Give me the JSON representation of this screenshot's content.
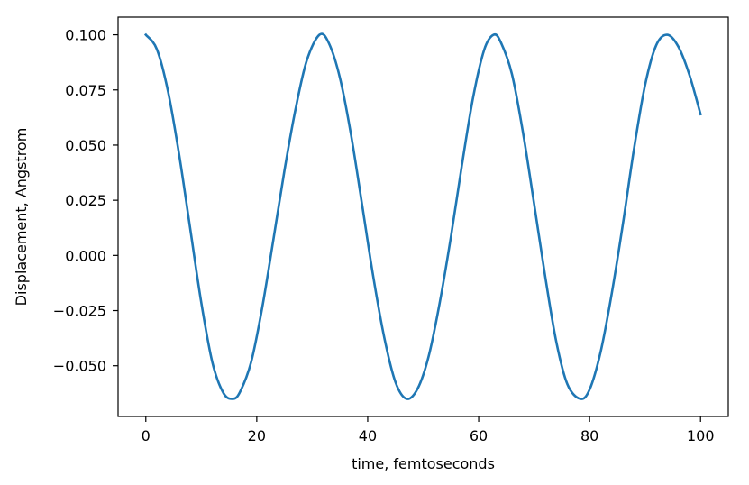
{
  "chart_data": {
    "type": "line",
    "title": "",
    "xlabel": "time, femtoseconds",
    "ylabel": "Displacement, Angstrom",
    "xlim": [
      -5,
      105
    ],
    "ylim": [
      -0.073,
      0.108
    ],
    "xticks": [
      0,
      20,
      40,
      60,
      80,
      100
    ],
    "xtick_labels": [
      "0",
      "20",
      "40",
      "60",
      "80",
      "100"
    ],
    "yticks": [
      0.1,
      0.075,
      0.05,
      0.025,
      0.0,
      -0.025,
      -0.05
    ],
    "ytick_labels": [
      "0.100",
      "0.075",
      "0.050",
      "0.025",
      "0.000",
      "−0.025",
      "−0.050"
    ],
    "grid": false,
    "series": [
      {
        "color": "#1f77b4",
        "x": [
          0,
          2,
          4,
          6,
          8,
          10,
          12,
          14,
          15.7,
          17,
          19,
          21,
          23,
          25,
          27,
          29,
          31.3,
          33,
          35,
          37,
          39,
          41,
          43,
          45,
          47,
          49,
          51,
          53,
          55,
          57,
          59,
          61,
          62.7,
          64,
          66,
          68,
          70,
          72,
          74,
          76,
          78.3,
          80,
          82,
          84,
          86,
          88,
          90,
          92,
          94,
          96,
          98,
          100
        ],
        "y": [
          0.1,
          0.0934,
          0.0744,
          0.0458,
          0.0122,
          -0.0214,
          -0.0485,
          -0.0624,
          -0.065,
          -0.0618,
          -0.0482,
          -0.0234,
          0.0072,
          0.0386,
          0.0664,
          0.0882,
          0.1,
          0.0962,
          0.0804,
          0.0546,
          0.0228,
          -0.0096,
          -0.0374,
          -0.0574,
          -0.065,
          -0.0604,
          -0.0456,
          -0.0212,
          0.0084,
          0.0412,
          0.0716,
          0.0932,
          0.1,
          0.0966,
          0.0822,
          0.0556,
          0.0234,
          -0.0096,
          -0.0392,
          -0.0584,
          -0.065,
          -0.0608,
          -0.0436,
          -0.0172,
          0.0142,
          0.0482,
          0.0772,
          0.0952,
          0.1,
          0.0946,
          0.0818,
          0.064
        ]
      }
    ]
  }
}
